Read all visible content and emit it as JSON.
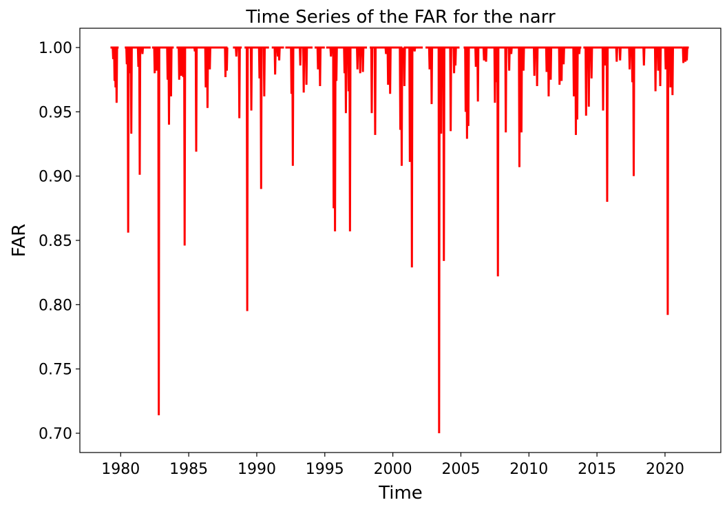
{
  "chart_data": {
    "type": "line",
    "title": "Time Series of the FAR for the narr",
    "xlabel": "Time",
    "ylabel": "FAR",
    "xlim": [
      1977.0,
      2024.1
    ],
    "ylim": [
      0.685,
      1.015
    ],
    "xticks": [
      1980,
      1985,
      1990,
      1995,
      2000,
      2005,
      2010,
      2015,
      2020
    ],
    "xtick_labels": [
      "1980",
      "1985",
      "1990",
      "1995",
      "2000",
      "2005",
      "2010",
      "2015",
      "2020"
    ],
    "yticks": [
      0.7,
      0.75,
      0.8,
      0.85,
      0.9,
      0.95,
      1.0
    ],
    "ytick_labels": [
      "0.70",
      "0.75",
      "0.80",
      "0.85",
      "0.90",
      "0.95",
      "1.00"
    ],
    "grid": false,
    "color": "#ff0000",
    "baseline": 1.0,
    "active_periods": [
      [
        1979.25,
        1979.85
      ],
      [
        1980.3,
        1982.2
      ],
      [
        1982.3,
        1983.9
      ],
      [
        1984.1,
        1987.85
      ],
      [
        1988.25,
        1988.9
      ],
      [
        1989.1,
        1990.9
      ],
      [
        1991.1,
        1992.0
      ],
      [
        1992.1,
        1994.1
      ],
      [
        1994.25,
        1995.0
      ],
      [
        1995.1,
        1998.1
      ],
      [
        1998.3,
        2000.7
      ],
      [
        2000.8,
        2002.2
      ],
      [
        2002.4,
        2004.9
      ],
      [
        2005.2,
        2013.85
      ],
      [
        2014.0,
        2021.3
      ],
      [
        2021.3,
        2021.75
      ]
    ],
    "dips": [
      [
        1979.45,
        0.991
      ],
      [
        1979.55,
        0.974
      ],
      [
        1979.62,
        0.969
      ],
      [
        1979.7,
        0.957
      ],
      [
        1980.45,
        0.987
      ],
      [
        1980.55,
        0.856
      ],
      [
        1980.65,
        0.98
      ],
      [
        1980.78,
        0.933
      ],
      [
        1981.3,
        0.985
      ],
      [
        1981.4,
        0.901
      ],
      [
        1981.6,
        0.995
      ],
      [
        1982.5,
        0.98
      ],
      [
        1982.65,
        0.982
      ],
      [
        1982.8,
        0.714
      ],
      [
        1983.45,
        0.975
      ],
      [
        1983.55,
        0.94
      ],
      [
        1983.7,
        0.962
      ],
      [
        1984.3,
        0.975
      ],
      [
        1984.45,
        0.978
      ],
      [
        1984.6,
        0.977
      ],
      [
        1984.7,
        0.846
      ],
      [
        1985.45,
        0.997
      ],
      [
        1985.55,
        0.919
      ],
      [
        1986.25,
        0.969
      ],
      [
        1986.38,
        0.953
      ],
      [
        1986.55,
        0.983
      ],
      [
        1987.7,
        0.977
      ],
      [
        1987.8,
        0.982
      ],
      [
        1988.5,
        0.993
      ],
      [
        1988.72,
        0.945
      ],
      [
        1989.3,
        0.795
      ],
      [
        1989.6,
        0.951
      ],
      [
        1990.2,
        0.976
      ],
      [
        1990.32,
        0.89
      ],
      [
        1990.55,
        0.962
      ],
      [
        1991.35,
        0.979
      ],
      [
        1991.55,
        0.993
      ],
      [
        1991.65,
        0.99
      ],
      [
        1992.55,
        0.964
      ],
      [
        1992.65,
        0.908
      ],
      [
        1993.2,
        0.986
      ],
      [
        1993.45,
        0.965
      ],
      [
        1993.65,
        0.971
      ],
      [
        1994.5,
        0.983
      ],
      [
        1994.65,
        0.97
      ],
      [
        1995.45,
        0.993
      ],
      [
        1995.65,
        0.875
      ],
      [
        1995.75,
        0.857
      ],
      [
        1995.85,
        0.974
      ],
      [
        1996.45,
        0.98
      ],
      [
        1996.55,
        0.949
      ],
      [
        1996.75,
        0.966
      ],
      [
        1996.85,
        0.857
      ],
      [
        1997.4,
        0.983
      ],
      [
        1997.6,
        0.98
      ],
      [
        1997.8,
        0.981
      ],
      [
        1998.45,
        0.949
      ],
      [
        1998.7,
        0.932
      ],
      [
        1999.5,
        0.995
      ],
      [
        1999.65,
        0.971
      ],
      [
        1999.8,
        0.964
      ],
      [
        2000.55,
        0.936
      ],
      [
        2000.65,
        0.908
      ],
      [
        2000.72,
        0.888
      ],
      [
        2000.85,
        0.97
      ],
      [
        2001.25,
        0.911
      ],
      [
        2001.4,
        0.829
      ],
      [
        2001.6,
        0.997
      ],
      [
        2002.7,
        0.983
      ],
      [
        2002.85,
        0.956
      ],
      [
        2003.4,
        0.7
      ],
      [
        2003.55,
        0.933
      ],
      [
        2003.65,
        0.983
      ],
      [
        2003.75,
        0.834
      ],
      [
        2004.25,
        0.935
      ],
      [
        2004.5,
        0.98
      ],
      [
        2004.6,
        0.986
      ],
      [
        2005.35,
        0.95
      ],
      [
        2005.45,
        0.929
      ],
      [
        2005.55,
        0.939
      ],
      [
        2006.1,
        0.985
      ],
      [
        2006.25,
        0.958
      ],
      [
        2006.7,
        0.99
      ],
      [
        2006.85,
        0.989
      ],
      [
        2007.5,
        0.957
      ],
      [
        2007.6,
        0.973
      ],
      [
        2007.72,
        0.822
      ],
      [
        2008.3,
        0.934
      ],
      [
        2008.55,
        0.982
      ],
      [
        2008.7,
        0.995
      ],
      [
        2009.3,
        0.907
      ],
      [
        2009.45,
        0.934
      ],
      [
        2009.6,
        0.982
      ],
      [
        2010.4,
        0.978
      ],
      [
        2010.6,
        0.97
      ],
      [
        2011.3,
        0.981
      ],
      [
        2011.45,
        0.962
      ],
      [
        2011.6,
        0.975
      ],
      [
        2012.25,
        0.971
      ],
      [
        2012.4,
        0.974
      ],
      [
        2012.55,
        0.987
      ],
      [
        2013.3,
        0.962
      ],
      [
        2013.45,
        0.932
      ],
      [
        2013.55,
        0.944
      ],
      [
        2013.7,
        0.995
      ],
      [
        2014.2,
        0.947
      ],
      [
        2014.4,
        0.954
      ],
      [
        2014.6,
        0.976
      ],
      [
        2015.45,
        0.951
      ],
      [
        2015.6,
        0.986
      ],
      [
        2015.75,
        0.88
      ],
      [
        2016.45,
        0.989
      ],
      [
        2016.7,
        0.99
      ],
      [
        2017.4,
        0.983
      ],
      [
        2017.6,
        0.973
      ],
      [
        2017.7,
        0.9
      ],
      [
        2018.45,
        0.986
      ],
      [
        2019.3,
        0.966
      ],
      [
        2019.5,
        0.982
      ],
      [
        2019.65,
        0.97
      ],
      [
        2020.05,
        0.983
      ],
      [
        2020.2,
        0.792
      ],
      [
        2020.4,
        0.969
      ],
      [
        2020.55,
        0.963
      ],
      [
        2021.35,
        0.988
      ],
      [
        2021.5,
        0.989
      ],
      [
        2021.6,
        0.99
      ]
    ]
  }
}
